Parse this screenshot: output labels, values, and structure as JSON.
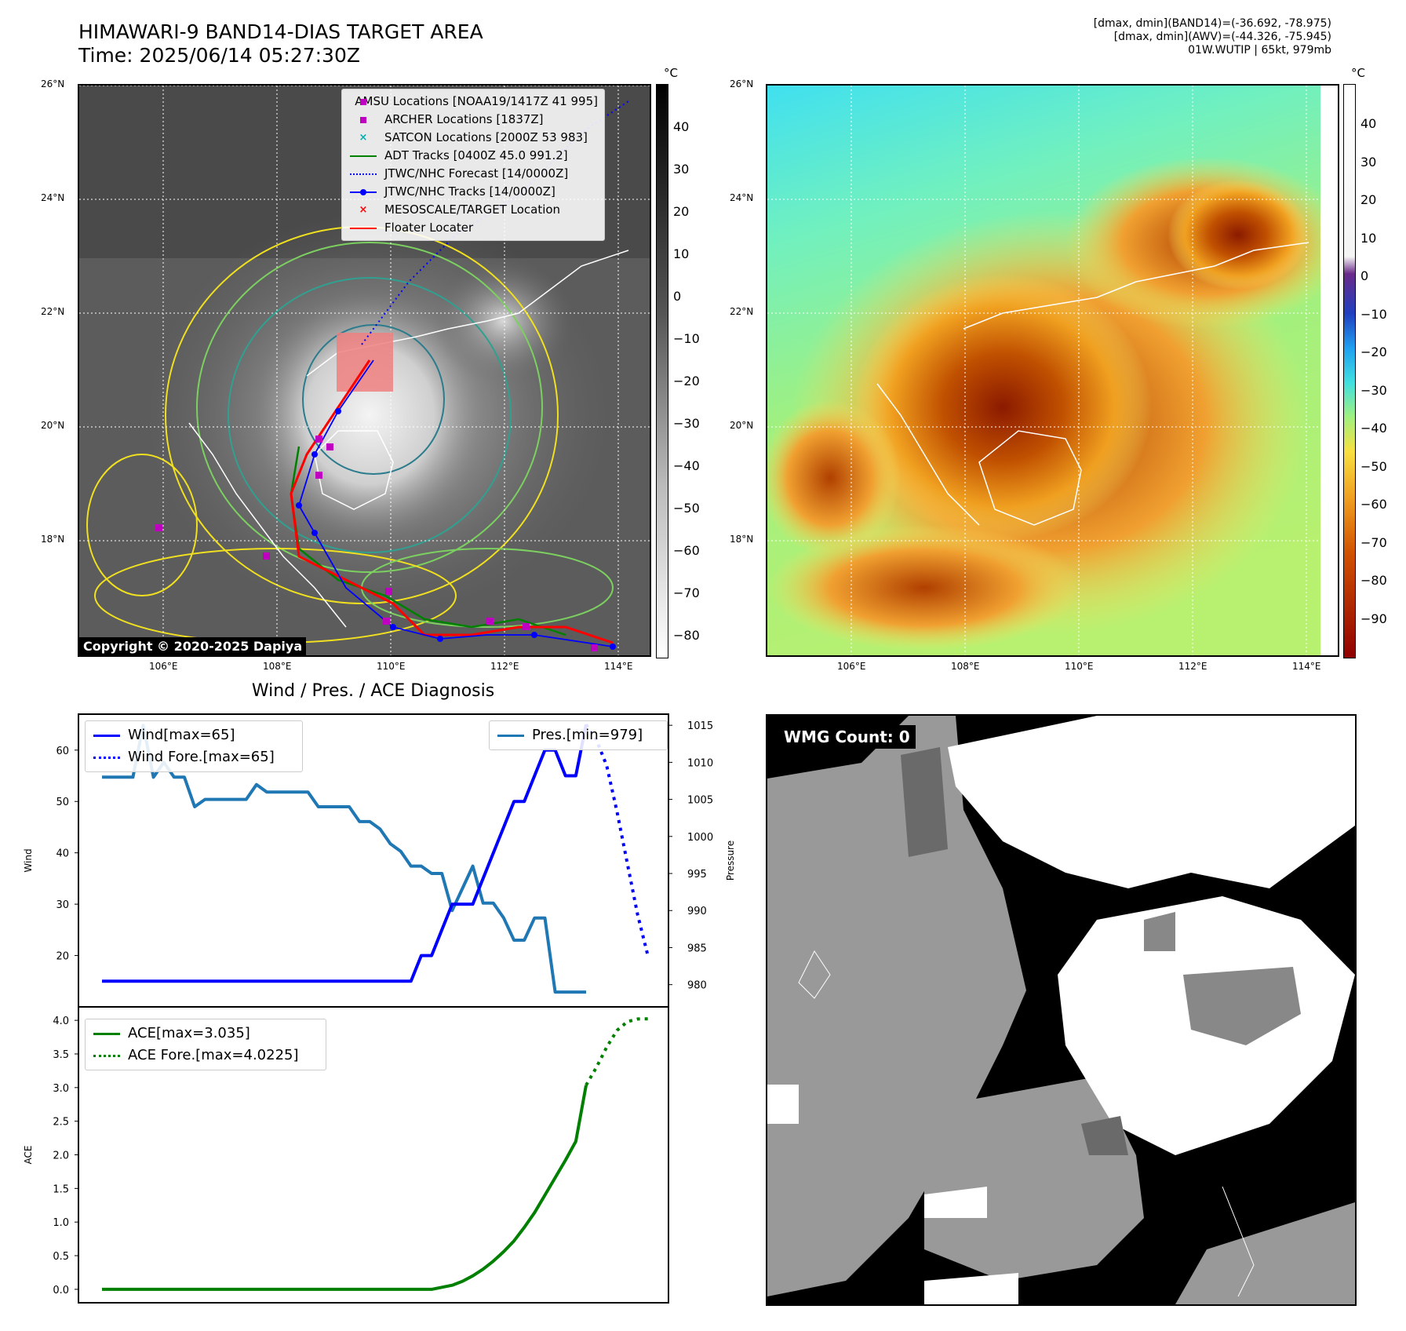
{
  "header": {
    "title_line1": "HIMAWARI-9 BAND14-DIAS TARGET AREA",
    "title_line2": "Time: 2025/06/14 05:27:30Z",
    "info_line1": "[dmax, dmin](BAND14)=(-36.692, -78.975)",
    "info_line2": "[dmax, dmin](AWV)=(-44.326, -75.945)",
    "info_line3": "01W.WUTIP | 65kt, 979mb"
  },
  "map": {
    "lat_labels": [
      "26°N",
      "24°N",
      "22°N",
      "20°N",
      "18°N"
    ],
    "lon_labels": [
      "106°E",
      "108°E",
      "110°E",
      "112°E",
      "114°E"
    ],
    "copyright": "Copyright © 2020-2025 Dapiya",
    "legend": [
      {
        "label": "AMSU Locations [NOAA19/1417Z 41 995]",
        "symbol": "square",
        "color": "#c000c0"
      },
      {
        "label": "ARCHER Locations [1837Z]",
        "symbol": "square",
        "color": "#c000c0"
      },
      {
        "label": "SATCON Locations [2000Z 53 983]",
        "symbol": "x",
        "color": "#00b0b0"
      },
      {
        "label": "ADT Tracks [0400Z 45.0 991.2]",
        "symbol": "line",
        "color": "#008000"
      },
      {
        "label": "JTWC/NHC Forecast [14/0000Z]",
        "symbol": "dotted",
        "color": "#0000ff"
      },
      {
        "label": "JTWC/NHC Tracks [14/0000Z]",
        "symbol": "line-dot",
        "color": "#0000ff"
      },
      {
        "label": "MESOSCALE/TARGET Location",
        "symbol": "x",
        "color": "#ff0000"
      },
      {
        "label": "Floater Locater",
        "symbol": "line",
        "color": "#ff0000"
      }
    ]
  },
  "colorbar_left": {
    "unit": "°C",
    "ticks": [
      "40",
      "30",
      "20",
      "10",
      "0",
      "−10",
      "−20",
      "−30",
      "−40",
      "−50",
      "−60",
      "−70",
      "−80"
    ]
  },
  "colorbar_right": {
    "unit": "°C",
    "ticks": [
      "40",
      "30",
      "20",
      "10",
      "0",
      "−10",
      "−20",
      "−30",
      "−40",
      "−50",
      "−60",
      "−70",
      "−80",
      "−90"
    ]
  },
  "wmg": {
    "label": "WMG Count: 0"
  },
  "chart_data": [
    {
      "type": "line",
      "title": "Wind / Pres. / ACE Diagnosis",
      "ylabel": "Wind",
      "ylabel_right": "Pressure",
      "ylim": [
        10,
        67
      ],
      "ylim_right": [
        977,
        1016.5
      ],
      "y_ticks": [
        "60",
        "50",
        "40",
        "30",
        "20"
      ],
      "y_ticks_right": [
        "1015",
        "1010",
        "1005",
        "1000",
        "995",
        "990",
        "985",
        "980"
      ],
      "x_index_max": 50,
      "legend_left": [
        "Wind[max=65]",
        "Wind Fore.[max=65]"
      ],
      "legend_right": [
        "Pres.[min=979]"
      ],
      "series": [
        {
          "name": "Wind[max=65]",
          "color": "#0000ff",
          "style": "solid",
          "x": [
            0,
            5,
            10,
            15,
            20,
            25,
            30,
            31,
            32,
            33,
            34,
            35,
            36,
            37,
            38,
            39,
            40,
            41,
            42,
            43,
            44,
            45,
            46,
            47
          ],
          "values": [
            15,
            15,
            15,
            15,
            15,
            15,
            15,
            20,
            20,
            25,
            30,
            30,
            30,
            35,
            40,
            45,
            50,
            50,
            55,
            60,
            60,
            55,
            55,
            65
          ]
        },
        {
          "name": "Wind Fore.[max=65]",
          "color": "#0000ff",
          "style": "dotted",
          "x": [
            47,
            48,
            49,
            50,
            51,
            52,
            53
          ],
          "values": [
            65,
            62,
            57,
            48,
            38,
            28,
            20
          ]
        },
        {
          "name": "Pres.[min=979]",
          "color": "#1f77b4",
          "style": "solid",
          "axis": "right",
          "x": [
            0,
            2,
            3,
            4,
            5,
            6,
            7,
            8,
            9,
            10,
            11,
            12,
            13,
            14,
            15,
            16,
            17,
            18,
            19,
            20,
            21,
            22,
            23,
            24,
            25,
            26,
            27,
            28,
            29,
            30,
            31,
            32,
            33,
            34,
            35,
            36,
            37,
            38,
            39,
            40,
            41,
            42,
            43,
            44,
            45,
            46,
            47
          ],
          "values": [
            1008,
            1008,
            1008,
            1015,
            1008,
            1010,
            1008,
            1008,
            1004,
            1005,
            1005,
            1005,
            1005,
            1005,
            1007,
            1006,
            1006,
            1006,
            1006,
            1006,
            1004,
            1004,
            1004,
            1004,
            1002,
            1002,
            1001,
            999,
            998,
            996,
            996,
            995,
            995,
            990,
            993,
            996,
            991,
            991,
            989,
            986,
            986,
            989,
            989,
            979,
            979,
            979,
            979
          ]
        }
      ]
    },
    {
      "type": "line",
      "ylabel": "ACE",
      "ylim": [
        -0.2,
        4.2
      ],
      "y_ticks": [
        "4.0",
        "3.5",
        "3.0",
        "2.5",
        "2.0",
        "1.5",
        "1.0",
        "0.5",
        "0.0"
      ],
      "x_index_max": 50,
      "legend": [
        "ACE[max=3.035]",
        "ACE Fore.[max=4.0225]"
      ],
      "series": [
        {
          "name": "ACE[max=3.035]",
          "color": "#008000",
          "style": "solid",
          "x": [
            0,
            10,
            20,
            30,
            31,
            32,
            33,
            34,
            35,
            36,
            37,
            38,
            39,
            40,
            41,
            42,
            43,
            44,
            45,
            46,
            47
          ],
          "values": [
            0,
            0,
            0,
            0,
            0,
            0,
            0.03,
            0.06,
            0.12,
            0.2,
            0.3,
            0.42,
            0.56,
            0.72,
            0.92,
            1.14,
            1.4,
            1.66,
            1.92,
            2.2,
            3.035
          ]
        },
        {
          "name": "ACE Fore.[max=4.0225]",
          "color": "#008000",
          "style": "dotted",
          "x": [
            47,
            48,
            49,
            50,
            51,
            52,
            53
          ],
          "values": [
            3.035,
            3.3,
            3.6,
            3.85,
            3.98,
            4.02,
            4.0225
          ]
        }
      ]
    }
  ]
}
